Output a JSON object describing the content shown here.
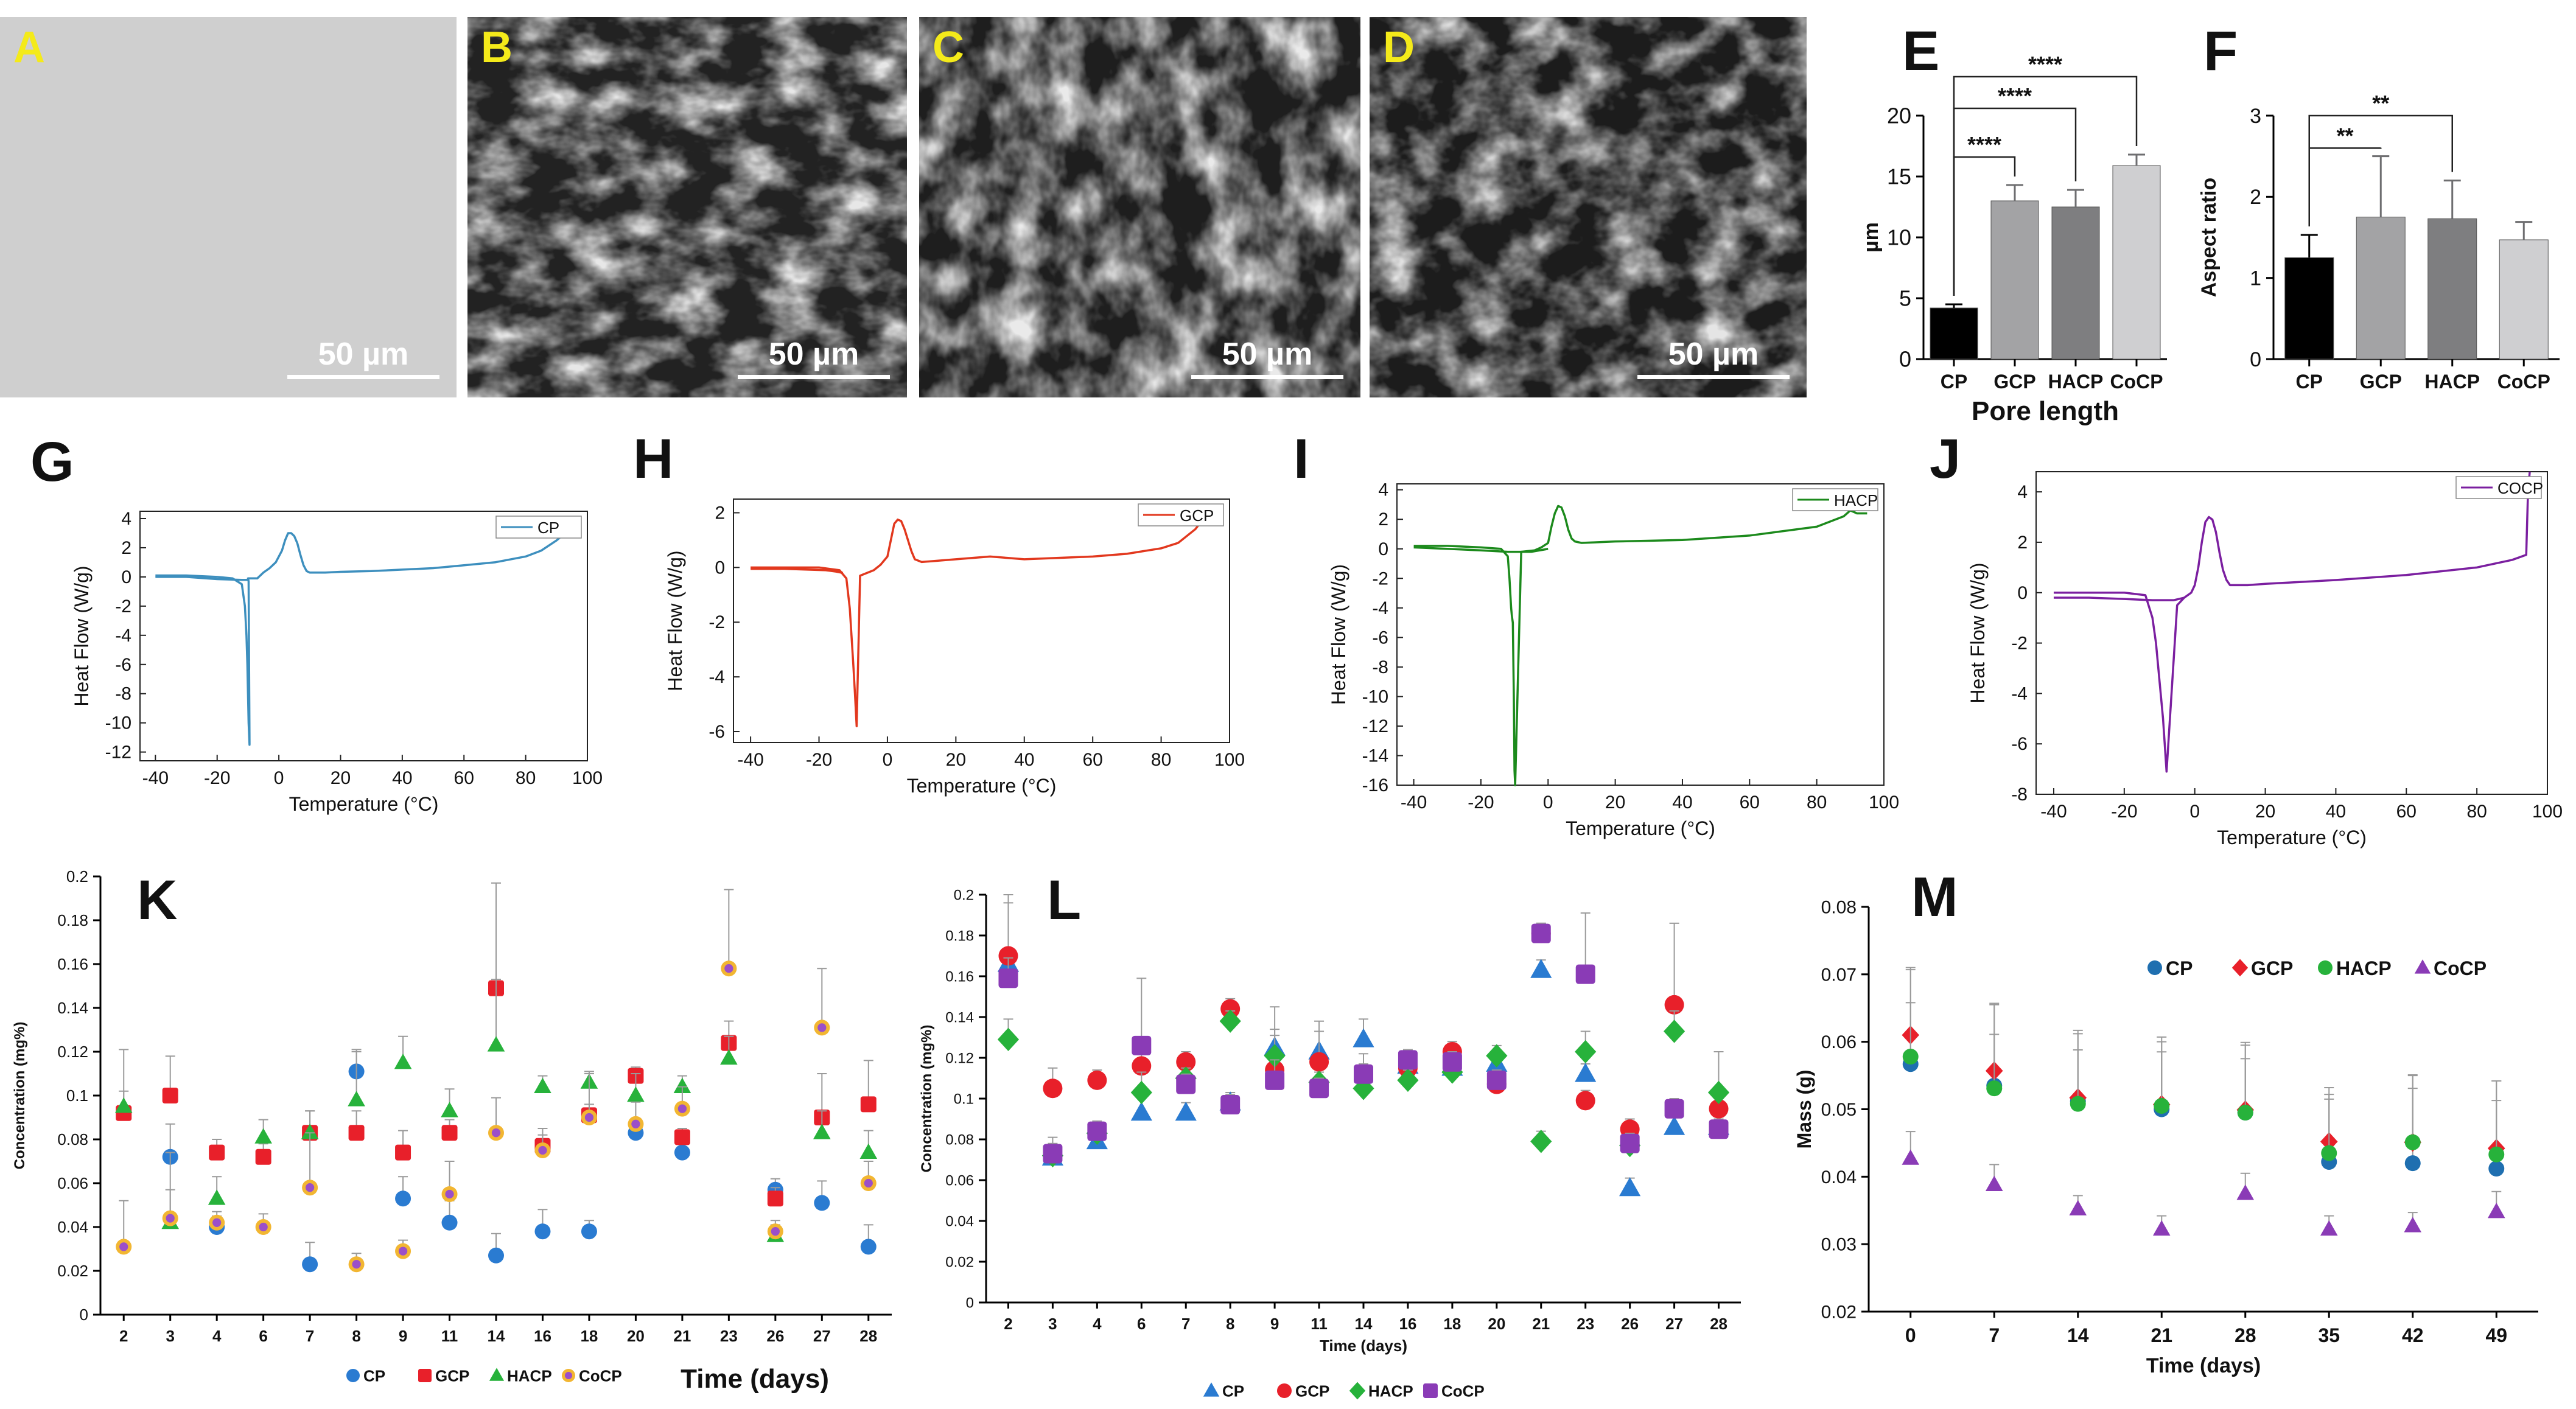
{
  "sem_panels": [
    {
      "letter": "A",
      "scale": "50 µm"
    },
    {
      "letter": "B",
      "scale": "50 µm"
    },
    {
      "letter": "C",
      "scale": "50 µm"
    },
    {
      "letter": "D",
      "scale": "50 µm"
    }
  ],
  "chart_data": [
    {
      "id": "E",
      "letter": "E",
      "type": "bar",
      "title": "",
      "xlabel": "Pore length",
      "ylabel": "µm",
      "categories": [
        "CP",
        "GCP",
        "HACP",
        "CoCP"
      ],
      "values": [
        4.2,
        13.0,
        12.5,
        15.9
      ],
      "errors": [
        0.3,
        1.3,
        1.4,
        0.9
      ],
      "colors": [
        "#000000",
        "#a3a3a5",
        "#7e7e80",
        "#cfcfd1"
      ],
      "ylim": [
        0,
        20
      ],
      "yticks": [
        0,
        5,
        10,
        15,
        20
      ],
      "significance": [
        {
          "from": 0,
          "to": 1,
          "label": "****"
        },
        {
          "from": 0,
          "to": 2,
          "label": "****"
        },
        {
          "from": 0,
          "to": 3,
          "label": "****"
        }
      ]
    },
    {
      "id": "F",
      "letter": "F",
      "type": "bar",
      "title": "",
      "xlabel": "",
      "ylabel": "Aspect ratio",
      "categories": [
        "CP",
        "GCP",
        "HACP",
        "CoCP"
      ],
      "values": [
        1.25,
        1.75,
        1.73,
        1.47
      ],
      "errors": [
        0.28,
        0.75,
        0.47,
        0.22
      ],
      "colors": [
        "#000000",
        "#a3a3a5",
        "#7e7e80",
        "#cfcfd1"
      ],
      "ylim": [
        0,
        3
      ],
      "yticks": [
        0,
        1,
        2,
        3
      ],
      "significance": [
        {
          "from": 0,
          "to": 1,
          "label": "**"
        },
        {
          "from": 0,
          "to": 2,
          "label": "**"
        }
      ]
    },
    {
      "id": "G",
      "letter": "G",
      "type": "line",
      "legend": "CP",
      "color": "#3d8fbe",
      "xlabel": "Temperature (°C)",
      "ylabel": "Heat Flow (W/g)",
      "xlim": [
        -45,
        100
      ],
      "xticks": [
        -40,
        -20,
        0,
        20,
        40,
        60,
        80,
        100
      ],
      "ylim": [
        -12.6,
        4.5
      ],
      "yticks": [
        -12,
        -10,
        -8,
        -6,
        -4,
        -2,
        0,
        2,
        4
      ],
      "x": [
        -40,
        -30,
        -20,
        -15,
        -12,
        -11,
        -10.5,
        -10.2,
        -10,
        -9.8,
        -9.5,
        -9.8,
        -10,
        -7,
        -6,
        -5,
        -3,
        -1,
        1,
        2,
        3,
        4,
        5,
        6,
        7,
        8,
        9,
        10,
        15,
        20,
        30,
        40,
        50,
        60,
        70,
        80,
        85,
        90,
        95
      ],
      "y": [
        0.1,
        0.1,
        0,
        -0.1,
        -0.5,
        -2,
        -4,
        -6,
        -8,
        -10,
        -11.5,
        -0.3,
        -0.1,
        -0.1,
        0.1,
        0.3,
        0.6,
        1,
        1.8,
        2.5,
        3.0,
        3.0,
        2.8,
        2.3,
        1.5,
        0.8,
        0.4,
        0.3,
        0.3,
        0.35,
        0.4,
        0.5,
        0.6,
        0.8,
        1.0,
        1.4,
        1.8,
        2.5,
        3.4
      ],
      "x2": [
        -40,
        -30,
        -20,
        -12,
        -10
      ],
      "y2": [
        0,
        0,
        -0.15,
        -0.2,
        -0.2
      ]
    },
    {
      "id": "H",
      "letter": "H",
      "type": "line",
      "legend": "GCP",
      "color": "#e2381e",
      "xlabel": "Temperature (°C)",
      "ylabel": "Heat Flow (W/g)",
      "xlim": [
        -45,
        100
      ],
      "xticks": [
        -40,
        -20,
        0,
        20,
        40,
        60,
        80,
        100
      ],
      "ylim": [
        -6.4,
        2.5
      ],
      "yticks": [
        -6,
        -4,
        -2,
        0,
        2
      ],
      "x": [
        -40,
        -30,
        -20,
        -14,
        -12,
        -11,
        -10.5,
        -10,
        -9.5,
        -9,
        -8,
        -6,
        -4,
        -2,
        0,
        1,
        2,
        3,
        4,
        5,
        6,
        7,
        8,
        10,
        20,
        30,
        35,
        40,
        50,
        60,
        70,
        80,
        85,
        90,
        95
      ],
      "y": [
        0,
        0,
        0,
        -0.1,
        -0.4,
        -1.5,
        -2.5,
        -3.5,
        -4.6,
        -5.8,
        -0.3,
        -0.2,
        -0.1,
        0.1,
        0.4,
        1.0,
        1.6,
        1.75,
        1.7,
        1.4,
        1.0,
        0.6,
        0.3,
        0.2,
        0.3,
        0.4,
        0.35,
        0.3,
        0.35,
        0.4,
        0.5,
        0.7,
        0.9,
        1.4,
        2.2
      ],
      "x2": [
        -40,
        -30,
        -18,
        -15,
        -13
      ],
      "y2": [
        -0.05,
        -0.05,
        -0.1,
        -0.15,
        -0.2
      ]
    },
    {
      "id": "I",
      "letter": "I",
      "type": "line",
      "legend": "HACP",
      "color": "#1c8a1c",
      "xlabel": "Temperature (°C)",
      "ylabel": "Heat Flow (W/g)",
      "xlim": [
        -45,
        100
      ],
      "xticks": [
        -40,
        -20,
        0,
        20,
        40,
        60,
        80,
        100
      ],
      "ylim": [
        -16,
        4.4
      ],
      "yticks": [
        -16,
        -14,
        -12,
        -10,
        -8,
        -6,
        -4,
        -2,
        0,
        2,
        4
      ],
      "x": [
        -40,
        -30,
        -20,
        -14,
        -12,
        -11.5,
        -11,
        -10.8,
        -10.5,
        -10.2,
        -10,
        -9.8,
        -8,
        -4,
        -2,
        0,
        1,
        2,
        3,
        4,
        5,
        6,
        7,
        8,
        10,
        20,
        40,
        60,
        80,
        88,
        90,
        92,
        95
      ],
      "y": [
        0.2,
        0.2,
        0.1,
        0,
        -0.5,
        -2,
        -4,
        -4.5,
        -5,
        -10,
        -15,
        -16,
        -0.2,
        -0.1,
        0.1,
        0.4,
        1.5,
        2.4,
        2.9,
        2.8,
        2.2,
        1.3,
        0.7,
        0.5,
        0.4,
        0.5,
        0.6,
        0.9,
        1.5,
        2.2,
        2.6,
        2.4,
        2.4
      ],
      "x2": [
        -40,
        -30,
        -20,
        -12,
        -5,
        0
      ],
      "y2": [
        0.1,
        0,
        -0.1,
        -0.2,
        -0.2,
        0
      ]
    },
    {
      "id": "J",
      "letter": "J",
      "type": "line",
      "legend": "COCP",
      "color": "#7b1fa0",
      "xlabel": "Temperature (°C)",
      "ylabel": "Heat Flow (W/g)",
      "xlim": [
        -45,
        100
      ],
      "xticks": [
        -40,
        -20,
        0,
        20,
        40,
        60,
        80,
        100
      ],
      "ylim": [
        -8,
        4.8
      ],
      "yticks": [
        -8,
        -6,
        -4,
        -2,
        0,
        2,
        4
      ],
      "x": [
        -40,
        -30,
        -20,
        -14,
        -12,
        -11,
        -10,
        -9,
        -8,
        -5,
        -3,
        -1,
        0,
        1,
        2,
        3,
        4,
        5,
        6,
        7,
        8,
        9,
        10,
        15,
        20,
        40,
        60,
        80,
        90,
        94,
        94.5,
        95
      ],
      "y": [
        0,
        0,
        0,
        -0.1,
        -1,
        -2,
        -3.5,
        -5,
        -7.1,
        -0.5,
        -0.2,
        0,
        0.3,
        1.0,
        2.0,
        2.8,
        3.0,
        2.9,
        2.4,
        1.6,
        0.9,
        0.5,
        0.3,
        0.3,
        0.35,
        0.5,
        0.7,
        1.0,
        1.3,
        1.5,
        4,
        4.8
      ],
      "x2": [
        -40,
        -30,
        -20,
        -12,
        -6,
        -3
      ],
      "y2": [
        -0.2,
        -0.2,
        -0.25,
        -0.3,
        -0.3,
        -0.2
      ]
    },
    {
      "id": "K",
      "letter": "K",
      "type": "scatter",
      "xlabel": "Time (days)",
      "ylabel": "Concentration (mg%)",
      "categories": [
        "2",
        "3",
        "4",
        "6",
        "7",
        "8",
        "9",
        "11",
        "14",
        "16",
        "18",
        "20",
        "21",
        "23",
        "26",
        "27",
        "28"
      ],
      "ylim": [
        0,
        0.2
      ],
      "yticks": [
        0,
        0.02,
        0.04,
        0.06,
        0.08,
        0.1,
        0.12,
        0.14,
        0.16,
        0.18,
        0.2
      ],
      "series": [
        {
          "name": "CP",
          "color": "#2a7bd1",
          "shape": "circle",
          "values": [
            null,
            0.072,
            0.04,
            null,
            0.023,
            0.111,
            0.053,
            0.042,
            0.027,
            0.038,
            0.038,
            0.083,
            0.074,
            null,
            0.057,
            0.051,
            0.031
          ],
          "errors": [
            0,
            0.015,
            0.005,
            0,
            0.01,
            0.01,
            0.01,
            0.01,
            0.01,
            0.01,
            0.005,
            0.005,
            0.005,
            0,
            0.005,
            0.01,
            0.01
          ]
        },
        {
          "name": "GCP",
          "color": "#e8202a",
          "shape": "square",
          "values": [
            0.092,
            0.1,
            0.074,
            0.072,
            0.083,
            0.083,
            0.074,
            0.083,
            0.149,
            0.077,
            0.091,
            0.109,
            0.081,
            0.124,
            0.053,
            0.09,
            0.096
          ],
          "errors": [
            0.01,
            0.018,
            0.006,
            0.006,
            0.01,
            0.01,
            0.01,
            0.006,
            0.048,
            0.005,
            0.005,
            0.004,
            0.004,
            0.01,
            0.005,
            0.02,
            0.02
          ]
        },
        {
          "name": "HACP",
          "color": "#27b23b",
          "shape": "triangle",
          "values": [
            0.095,
            0.042,
            0.053,
            0.081,
            0.083,
            0.098,
            0.115,
            0.093,
            0.123,
            0.104,
            0.106,
            0.1,
            0.104,
            0.117,
            0.036,
            0.083,
            0.074
          ],
          "errors": [
            0.026,
            0.015,
            0.01,
            0.008,
            0.01,
            0.022,
            0.012,
            0.01,
            0.03,
            0.005,
            0.005,
            0.01,
            0.005,
            0.01,
            0.005,
            0.01,
            0.01
          ]
        },
        {
          "name": "CoCP",
          "color": "#f2b632",
          "shape": "ring",
          "values": [
            0.031,
            0.044,
            0.042,
            0.04,
            0.058,
            0.023,
            0.029,
            0.055,
            0.083,
            0.075,
            0.09,
            0.087,
            0.094,
            0.158,
            0.038,
            0.131,
            0.06
          ],
          "errors": [
            0.021,
            0.03,
            0.005,
            0.006,
            0.025,
            0.005,
            0.005,
            0.015,
            0.016,
            0.01,
            0.02,
            0.01,
            0.01,
            0.036,
            0.005,
            0.027,
            0.01
          ]
        }
      ]
    },
    {
      "id": "L",
      "letter": "L",
      "type": "scatter",
      "xlabel": "Time (days)",
      "ylabel": "Concentration (mg%)",
      "categories": [
        "2",
        "3",
        "4",
        "6",
        "7",
        "8",
        "9",
        "11",
        "14",
        "16",
        "18",
        "20",
        "21",
        "23",
        "26",
        "27",
        "28"
      ],
      "ylim": [
        0,
        0.2
      ],
      "yticks": [
        0,
        0.02,
        0.04,
        0.06,
        0.08,
        0.1,
        0.12,
        0.14,
        0.16,
        0.18,
        0.2
      ],
      "series": [
        {
          "name": "CP",
          "color": "#2a7bd1",
          "shape": "triangle",
          "values": [
            0.166,
            0.071,
            0.079,
            0.093,
            0.093,
            0.098,
            0.125,
            0.123,
            0.129,
            0.116,
            0.115,
            0.117,
            0.163,
            0.112,
            0.056,
            0.086,
            0.086
          ],
          "errors": [
            0.03,
            0.01,
            0.005,
            0.01,
            0.005,
            0.005,
            0.02,
            0.015,
            0.01,
            0.005,
            0.005,
            0.005,
            0.005,
            0.005,
            0.005,
            0.005,
            0.005
          ]
        },
        {
          "name": "GCP",
          "color": "#e8202a",
          "shape": "circle",
          "values": [
            0.17,
            0.105,
            0.109,
            0.116,
            0.118,
            0.144,
            0.114,
            0.118,
            0.112,
            0.115,
            0.123,
            0.107,
            0.181,
            0.099,
            0.085,
            0.146,
            0.095
          ],
          "errors": [
            0.03,
            0.01,
            0.005,
            0.01,
            0.005,
            0.005,
            0.02,
            0.015,
            0.01,
            0.005,
            0.005,
            0.005,
            0.005,
            0.005,
            0.005,
            0.04,
            0.005
          ]
        },
        {
          "name": "HACP",
          "color": "#27b23b",
          "shape": "diamond",
          "values": [
            0.129,
            0.072,
            0.083,
            0.103,
            0.11,
            0.138,
            0.121,
            0.108,
            0.105,
            0.109,
            0.113,
            0.121,
            0.079,
            0.123,
            0.077,
            0.133,
            0.103
          ],
          "errors": [
            0.01,
            0.005,
            0.005,
            0.01,
            0.005,
            0.005,
            0.01,
            0.005,
            0.005,
            0.005,
            0.005,
            0.005,
            0.005,
            0.01,
            0.005,
            0.01,
            0.02
          ]
        },
        {
          "name": "CoCP",
          "color": "#8a3bb6",
          "shape": "square",
          "values": [
            0.159,
            0.073,
            0.084,
            0.126,
            0.107,
            0.097,
            0.109,
            0.105,
            0.112,
            0.119,
            0.118,
            0.109,
            0.181,
            0.161,
            0.078,
            0.095,
            0.085
          ],
          "errors": [
            0.01,
            0.005,
            0.005,
            0.033,
            0.005,
            0.005,
            0.01,
            0.005,
            0.005,
            0.005,
            0.005,
            0.005,
            0.005,
            0.03,
            0.005,
            0.005,
            0.005
          ]
        }
      ]
    },
    {
      "id": "M",
      "letter": "M",
      "type": "scatter",
      "xlabel": "Time (days)",
      "ylabel": "Mass (g)",
      "categories": [
        "0",
        "7",
        "14",
        "21",
        "28",
        "35",
        "42",
        "49"
      ],
      "ylim": [
        0.02,
        0.08
      ],
      "yticks": [
        0.02,
        0.03,
        0.04,
        0.05,
        0.06,
        0.07,
        0.08
      ],
      "series": [
        {
          "name": "CP",
          "color": "#1f6fb0",
          "shape": "circle",
          "values": [
            0.0567,
            0.0535,
            0.0512,
            0.05,
            0.0495,
            0.0422,
            0.042,
            0.0412
          ],
          "errors": [
            0.014,
            0.012,
            0.01,
            0.01,
            0.01,
            0.01,
            0.013,
            0.013
          ]
        },
        {
          "name": "GCP",
          "color": "#e8202a",
          "shape": "diamond",
          "values": [
            0.061,
            0.0557,
            0.0517,
            0.0507,
            0.0499,
            0.0452,
            0.0451,
            0.0442
          ],
          "errors": [
            0.01,
            0.01,
            0.01,
            0.01,
            0.01,
            0.008,
            0.01,
            0.01
          ]
        },
        {
          "name": "HACP",
          "color": "#27b23b",
          "shape": "circle",
          "values": [
            0.0578,
            0.0531,
            0.0508,
            0.0505,
            0.0495,
            0.0435,
            0.0451,
            0.0433
          ],
          "errors": [
            0.008,
            0.008,
            0.008,
            0.008,
            0.008,
            0.008,
            0.008,
            0.008
          ]
        },
        {
          "name": "CoCP",
          "color": "#8a3bb6",
          "shape": "triangle",
          "values": [
            0.0427,
            0.0388,
            0.0352,
            0.0322,
            0.0375,
            0.0322,
            0.0327,
            0.0348
          ],
          "errors": [
            0.004,
            0.003,
            0.002,
            0.002,
            0.003,
            0.002,
            0.002,
            0.003
          ]
        }
      ]
    }
  ]
}
